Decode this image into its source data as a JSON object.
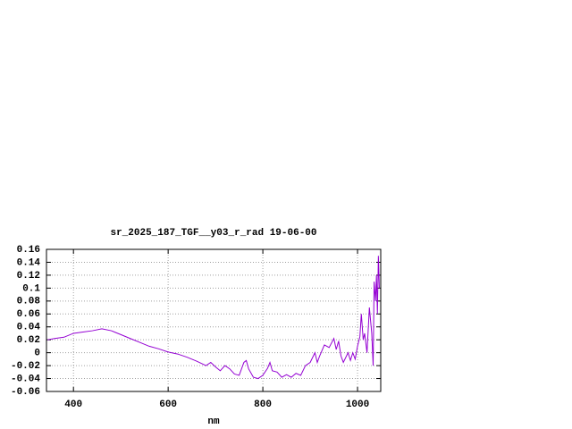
{
  "chart_data": {
    "type": "line",
    "title": "sr_2025_187_TGF__y03_r_rad 19-06-00",
    "x_label": "nm",
    "x": [
      345,
      360,
      380,
      400,
      420,
      440,
      460,
      480,
      500,
      520,
      540,
      560,
      580,
      600,
      620,
      640,
      660,
      680,
      690,
      700,
      710,
      720,
      730,
      740,
      750,
      760,
      765,
      770,
      780,
      790,
      800,
      810,
      815,
      820,
      830,
      840,
      850,
      860,
      870,
      880,
      890,
      900,
      910,
      915,
      920,
      930,
      940,
      950,
      955,
      960,
      965,
      970,
      980,
      985,
      990,
      995,
      1000,
      1005,
      1008,
      1012,
      1015,
      1020,
      1025,
      1030,
      1033,
      1035,
      1038,
      1040,
      1042,
      1044,
      1046
    ],
    "series": [
      {
        "color": "#9400d3",
        "values": [
          0.02,
          0.022,
          0.024,
          0.03,
          0.032,
          0.034,
          0.037,
          0.034,
          0.028,
          0.022,
          0.016,
          0.01,
          0.006,
          0.001,
          -0.002,
          -0.007,
          -0.013,
          -0.02,
          -0.015,
          -0.022,
          -0.028,
          -0.02,
          -0.025,
          -0.033,
          -0.035,
          -0.015,
          -0.012,
          -0.025,
          -0.038,
          -0.04,
          -0.035,
          -0.024,
          -0.015,
          -0.028,
          -0.03,
          -0.038,
          -0.034,
          -0.038,
          -0.032,
          -0.035,
          -0.02,
          -0.015,
          0.0,
          -0.015,
          -0.005,
          0.012,
          0.008,
          0.022,
          0.005,
          0.018,
          -0.005,
          -0.015,
          0.0,
          -0.012,
          0.0,
          -0.01,
          0.01,
          0.025,
          0.06,
          0.02,
          0.03,
          0.0,
          0.07,
          0.03,
          -0.02,
          0.11,
          0.08,
          0.12,
          0.06,
          0.15,
          0.1
        ]
      }
    ],
    "xlim": [
      343,
      1049
    ],
    "xticks": [
      400,
      600,
      800,
      1000
    ],
    "ylim": [
      -0.06,
      0.16
    ],
    "yticks": [
      0.16,
      0.14,
      0.12,
      0.1,
      0.08,
      0.06,
      0.04,
      0.02,
      0,
      -0.02,
      -0.04,
      -0.06
    ],
    "grid": true
  }
}
